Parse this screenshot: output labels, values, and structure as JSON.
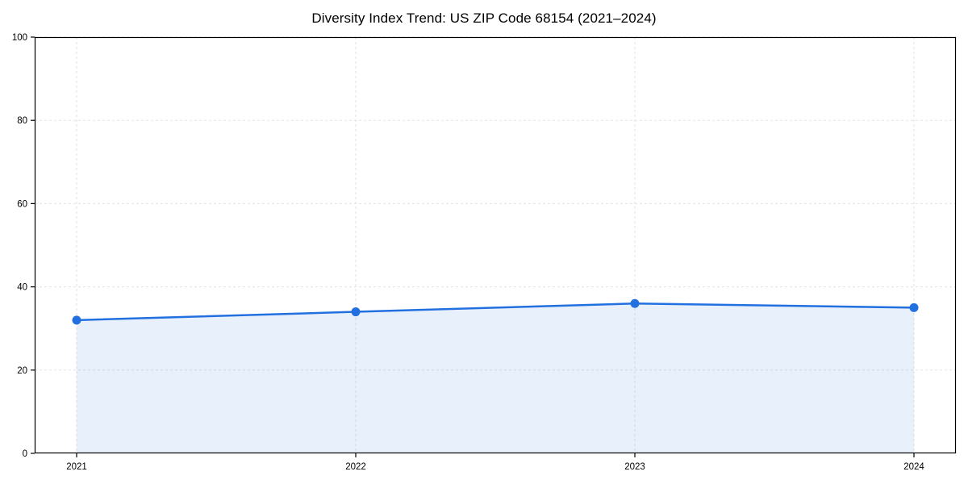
{
  "chart_data": {
    "type": "area",
    "title": "Diversity Index Trend: US ZIP Code 68154 (2021–2024)",
    "categories": [
      "2021",
      "2022",
      "2023",
      "2024"
    ],
    "values": [
      32,
      34,
      36,
      35
    ],
    "xlabel": "",
    "ylabel": "",
    "ylim": [
      0,
      100
    ],
    "yticks": [
      0,
      20,
      40,
      60,
      80,
      100
    ],
    "grid": "dashed-both-directions",
    "legend_position": "none",
    "colors": {
      "line": "#2270e0",
      "marker": "#2270e0",
      "fill": "#2270e0",
      "fill_opacity": 0.1,
      "grid": "#e2e2e2",
      "axis": "#000000",
      "text": "#000000",
      "background": "#ffffff"
    }
  }
}
